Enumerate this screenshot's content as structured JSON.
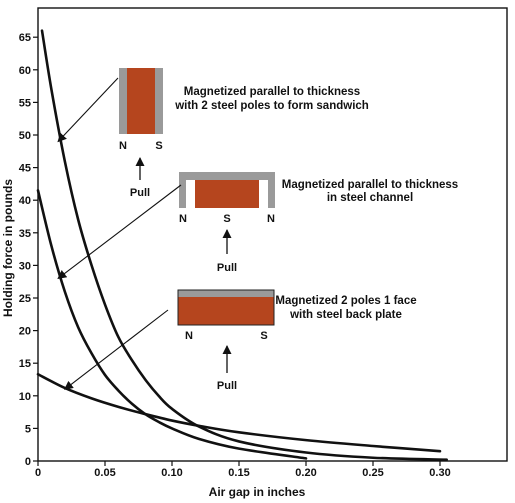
{
  "chart_data": {
    "type": "line",
    "xlabel": "Air gap in inches",
    "ylabel": "Holding force in pounds",
    "xlim": [
      0,
      0.35
    ],
    "ylim": [
      0,
      67
    ],
    "x_ticks": [
      0,
      0.05,
      0.1,
      0.15,
      0.2,
      0.25,
      0.3
    ],
    "x_tick_labels": [
      "0",
      "0.05",
      "0.10",
      "0.15",
      "0.20",
      "0.25",
      "0.30"
    ],
    "y_ticks": [
      0,
      5,
      10,
      15,
      20,
      25,
      30,
      35,
      40,
      45,
      50,
      55,
      60,
      65
    ],
    "y_tick_labels": [
      "0",
      "5",
      "10",
      "15",
      "20",
      "25",
      "30",
      "35",
      "40",
      "45",
      "50",
      "55",
      "60",
      "65"
    ],
    "grid": false,
    "series": [
      {
        "x": [
          0.003,
          0.01,
          0.02,
          0.03,
          0.04,
          0.05,
          0.06,
          0.07,
          0.08,
          0.09,
          0.1,
          0.12,
          0.15,
          0.2,
          0.25,
          0.305
        ],
        "y": [
          66,
          57,
          46,
          37,
          30,
          24,
          19,
          15.5,
          12.5,
          10,
          8,
          5.3,
          3,
          1.3,
          0.5,
          0.2
        ]
      },
      {
        "x": [
          0.0,
          0.01,
          0.02,
          0.03,
          0.04,
          0.05,
          0.06,
          0.07,
          0.08,
          0.09,
          0.1,
          0.12,
          0.15,
          0.2
        ],
        "y": [
          41.5,
          33,
          26,
          20.5,
          16.5,
          13.2,
          10.8,
          8.8,
          7.2,
          6,
          5,
          3.4,
          1.9,
          0.4
        ]
      },
      {
        "x": [
          0.0,
          0.02,
          0.04,
          0.06,
          0.08,
          0.1,
          0.12,
          0.15,
          0.2,
          0.25,
          0.3
        ],
        "y": [
          13.3,
          11.2,
          9.6,
          8.3,
          7.2,
          6.2,
          5.4,
          4.4,
          3.2,
          2.3,
          1.5
        ]
      }
    ],
    "annotations": [
      {
        "id": "sandwich",
        "text_lines": [
          "Magnetized parallel to thickness",
          "with 2 steel poles to form sandwich"
        ],
        "pole_labels": [
          "N",
          "S"
        ],
        "force_label": "Pull",
        "points_to": [
          0.015,
          49
        ]
      },
      {
        "id": "channel",
        "text_lines": [
          "Magnetized parallel to thickness",
          "in steel channel"
        ],
        "pole_labels": [
          "N",
          "S",
          "N"
        ],
        "force_label": "Pull",
        "points_to": [
          0.015,
          28
        ]
      },
      {
        "id": "backplate",
        "text_lines": [
          "Magnetized 2 poles 1 face",
          "with steel back plate"
        ],
        "pole_labels": [
          "N",
          "S"
        ],
        "force_label": "Pull",
        "points_to": [
          0.02,
          11
        ]
      }
    ],
    "colors": {
      "magnet": "#b5451e",
      "steel": "#9a9a9a",
      "curve": "#111111"
    }
  }
}
